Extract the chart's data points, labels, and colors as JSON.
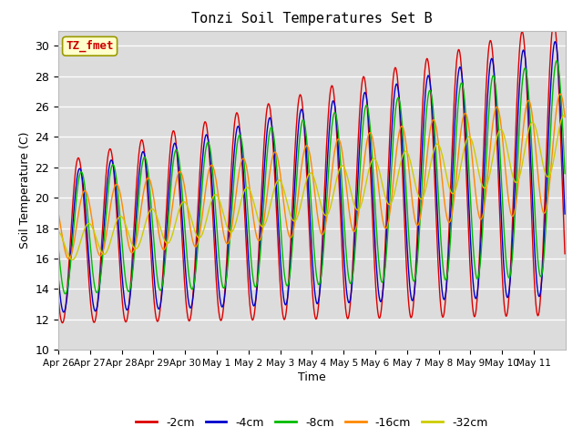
{
  "title": "Tonzi Soil Temperatures Set B",
  "xlabel": "Time",
  "ylabel": "Soil Temperature (C)",
  "ylim": [
    10,
    31
  ],
  "yticks": [
    10,
    12,
    14,
    16,
    18,
    20,
    22,
    24,
    26,
    28,
    30
  ],
  "bg_color": "#dcdcdc",
  "fig_color": "#ffffff",
  "annotation_label": "TZ_fmet",
  "annotation_bg": "#ffffcc",
  "annotation_fg": "#cc0000",
  "line_colors": {
    "-2cm": "#dd0000",
    "-4cm": "#0000cc",
    "-8cm": "#00bb00",
    "-16cm": "#ff8800",
    "-32cm": "#cccc00"
  },
  "xtick_labels": [
    "Apr 26",
    "Apr 27",
    "Apr 28",
    "Apr 29",
    "Apr 30",
    "May 1",
    "May 2",
    "May 3",
    "May 4",
    "May 5",
    "May 6",
    "May 7",
    "May 8",
    "May 9",
    "May 10",
    "May 11"
  ],
  "n_days": 16,
  "samples_per_day": 48,
  "legend_labels": [
    "-2cm",
    "-4cm",
    "-8cm",
    "-16cm",
    "-32cm"
  ]
}
